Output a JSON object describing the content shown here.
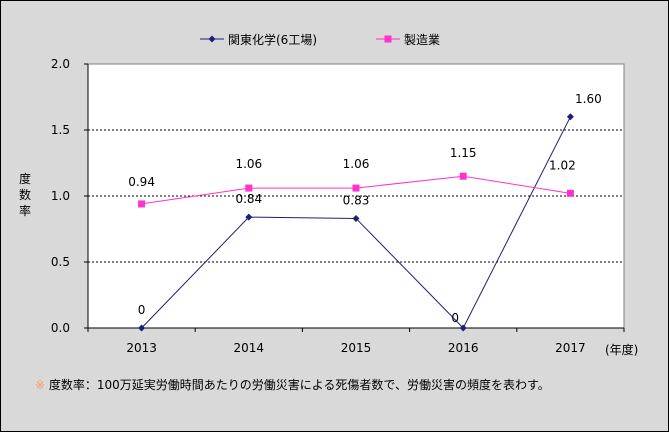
{
  "chart_data": {
    "type": "line",
    "categories": [
      "2013",
      "2014",
      "2015",
      "2016",
      "2017"
    ],
    "x_unit_label": "(年度)",
    "ylabel": "度数率",
    "ylim": [
      0.0,
      2.0
    ],
    "yticks": [
      "0.0",
      "0.5",
      "1.0",
      "1.5",
      "2.0"
    ],
    "grid": "horizontal dotted",
    "legend_position": "top-center",
    "series": [
      {
        "name": "関東化学(6工場)",
        "values": [
          0,
          0.84,
          0.83,
          0,
          1.6
        ],
        "labels": [
          "0",
          "0.84",
          "0.83",
          "0",
          "1.60"
        ],
        "color": "#1f1f7a",
        "marker": "diamond"
      },
      {
        "name": "製造業",
        "values": [
          0.94,
          1.06,
          1.06,
          1.15,
          1.02
        ],
        "labels": [
          "0.94",
          "1.06",
          "1.06",
          "1.15",
          "1.02"
        ],
        "color": "#ff33cc",
        "marker": "square"
      }
    ]
  },
  "footnote": {
    "mark": "※",
    "text": " 度数率：100万延実労働時間あたりの労働災害による死傷者数で、労働災害の頻度を表わす。"
  }
}
